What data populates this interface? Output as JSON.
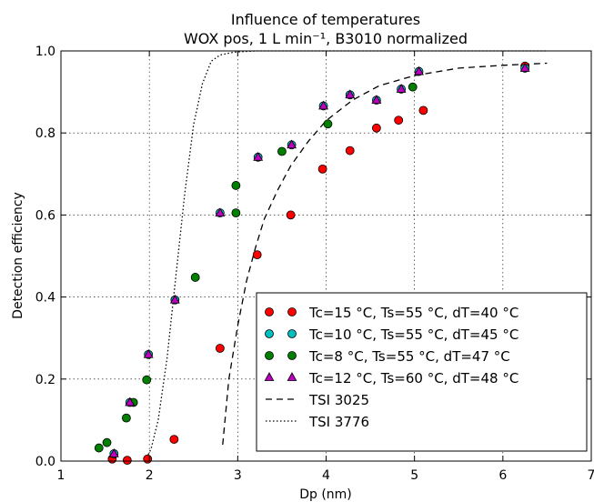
{
  "chart_data": {
    "type": "scatter",
    "title": "Influence of temperatures",
    "subtitle": "WOX pos, 1 L min⁻¹, B3010 normalized",
    "xlabel": "Dp (nm)",
    "ylabel": "Detection efficiency",
    "xlim": [
      1,
      7
    ],
    "ylim": [
      0,
      1.0
    ],
    "xticks": [
      "1",
      "2",
      "3",
      "4",
      "5",
      "6",
      "7"
    ],
    "yticks": [
      "0.0",
      "0.2",
      "0.4",
      "0.6",
      "0.8",
      "1.0"
    ],
    "grid": true,
    "legend_position": "lower-right",
    "series": [
      {
        "name": "Tc=15 °C, Ts=55 °C, dT=40 °C",
        "marker": "circle",
        "color": "#ff0000",
        "points": [
          [
            1.58,
            0.005
          ],
          [
            1.75,
            0.002
          ],
          [
            1.98,
            0.005
          ],
          [
            2.28,
            0.053
          ],
          [
            2.8,
            0.275
          ],
          [
            3.22,
            0.503
          ],
          [
            3.6,
            0.6
          ],
          [
            3.96,
            0.712
          ],
          [
            4.27,
            0.757
          ],
          [
            4.57,
            0.812
          ],
          [
            4.82,
            0.831
          ],
          [
            5.1,
            0.855
          ],
          [
            6.25,
            0.963
          ]
        ]
      },
      {
        "name": "Tc=10 °C, Ts=55 °C, dT=45 °C",
        "marker": "circle",
        "color": "#00bfbf",
        "points": [
          [
            1.6,
            0.018
          ],
          [
            1.78,
            0.143
          ],
          [
            1.99,
            0.26
          ],
          [
            2.29,
            0.393
          ],
          [
            2.8,
            0.605
          ],
          [
            3.23,
            0.741
          ],
          [
            3.61,
            0.771
          ],
          [
            3.97,
            0.866
          ],
          [
            4.27,
            0.893
          ],
          [
            4.57,
            0.88
          ],
          [
            4.85,
            0.907
          ],
          [
            5.05,
            0.95
          ],
          [
            6.25,
            0.958
          ]
        ]
      },
      {
        "name": "Tc=8 °C, Ts=55 °C, dT=47 °C",
        "marker": "circle",
        "color": "#007f00",
        "points": [
          [
            1.43,
            0.032
          ],
          [
            1.52,
            0.045
          ],
          [
            1.74,
            0.105
          ],
          [
            1.82,
            0.143
          ],
          [
            1.97,
            0.198
          ],
          [
            2.52,
            0.448
          ],
          [
            2.98,
            0.672
          ],
          [
            2.98,
            0.605
          ],
          [
            3.5,
            0.755
          ],
          [
            4.02,
            0.822
          ],
          [
            4.98,
            0.912
          ]
        ]
      },
      {
        "name": "Tc=12 °C, Ts=60 °C, dT=48 °C",
        "marker": "triangle",
        "color": "#bf00bf",
        "points": [
          [
            1.6,
            0.018
          ],
          [
            1.78,
            0.143
          ],
          [
            1.99,
            0.26
          ],
          [
            2.29,
            0.393
          ],
          [
            2.8,
            0.605
          ],
          [
            3.23,
            0.741
          ],
          [
            3.61,
            0.771
          ],
          [
            3.97,
            0.866
          ],
          [
            4.27,
            0.893
          ],
          [
            4.57,
            0.88
          ],
          [
            4.85,
            0.907
          ],
          [
            5.05,
            0.95
          ],
          [
            6.25,
            0.958
          ]
        ]
      },
      {
        "name": "TSI 3025",
        "style": "dashed",
        "color": "#000000",
        "points": [
          [
            2.83,
            0.04
          ],
          [
            2.9,
            0.2
          ],
          [
            3.0,
            0.33
          ],
          [
            3.1,
            0.44
          ],
          [
            3.2,
            0.52
          ],
          [
            3.3,
            0.59
          ],
          [
            3.45,
            0.66
          ],
          [
            3.6,
            0.72
          ],
          [
            3.8,
            0.78
          ],
          [
            4.0,
            0.83
          ],
          [
            4.3,
            0.88
          ],
          [
            4.6,
            0.915
          ],
          [
            5.0,
            0.94
          ],
          [
            5.5,
            0.958
          ],
          [
            6.0,
            0.965
          ],
          [
            6.5,
            0.97
          ]
        ]
      },
      {
        "name": "TSI 3776",
        "style": "dotted",
        "color": "#000000",
        "points": [
          [
            1.95,
            0.0
          ],
          [
            2.02,
            0.03
          ],
          [
            2.1,
            0.1
          ],
          [
            2.2,
            0.25
          ],
          [
            2.3,
            0.45
          ],
          [
            2.4,
            0.65
          ],
          [
            2.5,
            0.82
          ],
          [
            2.6,
            0.92
          ],
          [
            2.7,
            0.975
          ],
          [
            2.8,
            0.99
          ],
          [
            2.95,
            0.997
          ],
          [
            3.2,
            1.0
          ],
          [
            4.0,
            1.0
          ],
          [
            5.0,
            1.0
          ],
          [
            6.0,
            1.0
          ],
          [
            6.5,
            1.0
          ]
        ]
      }
    ]
  }
}
